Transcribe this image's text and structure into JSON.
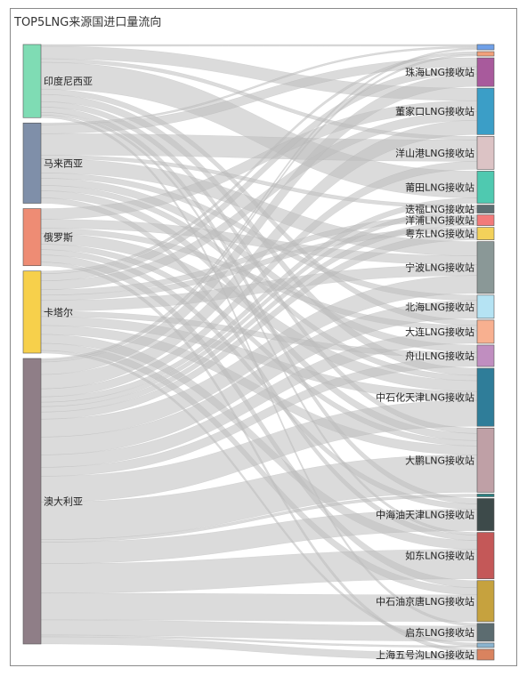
{
  "chart_data": {
    "type": "sankey",
    "title": "TOP5LNG来源国进口量流向",
    "sources": [
      {
        "name": "印度尼西亚",
        "color": "#7fdcb4"
      },
      {
        "name": "马来西亚",
        "color": "#7f8fa9"
      },
      {
        "name": "俄罗斯",
        "color": "#ee8c74"
      },
      {
        "name": "卡塔尔",
        "color": "#f7d04b"
      },
      {
        "name": "澳大利亚",
        "color": "#8f7e87"
      }
    ],
    "targets": [
      {
        "name": "",
        "color": "#6fa0e8",
        "value": 6
      },
      {
        "name": "",
        "color": "#f2a07a",
        "value": 5
      },
      {
        "name": "珠海LNG接收站",
        "color": "#a85a9c",
        "value": 32
      },
      {
        "name": "董家口LNG接收站",
        "color": "#3b9ec7",
        "value": 52
      },
      {
        "name": "洋山港LNG接收站",
        "color": "#dcc3c5",
        "value": 37
      },
      {
        "name": "莆田LNG接收站",
        "color": "#4fc9b0",
        "value": 36
      },
      {
        "name": "迭福LNG接收站",
        "color": "#5d6e72",
        "value": 9
      },
      {
        "name": "洋浦LNG接收站",
        "color": "#f27a7a",
        "value": 12
      },
      {
        "name": "粤东LNG接收站",
        "color": "#f3d15a",
        "value": 14
      },
      {
        "name": "宁波LNG接收站",
        "color": "#8a9897",
        "value": 58
      },
      {
        "name": "北海LNG接收站",
        "color": "#b5e3f3",
        "value": 26
      },
      {
        "name": "大连LNG接收站",
        "color": "#f8b090",
        "value": 26
      },
      {
        "name": "舟山LNG接收站",
        "color": "#c08ec0",
        "value": 24
      },
      {
        "name": "中石化天津LNG接收站",
        "color": "#2f7d99",
        "value": 65
      },
      {
        "name": "大鹏LNG接收站",
        "color": "#bfa0a6",
        "value": 72
      },
      {
        "name": "",
        "color": "#2a7f7f",
        "value": 3
      },
      {
        "name": "中海油天津LNG接收站",
        "color": "#3d4a4a",
        "value": 36
      },
      {
        "name": "如东LNG接收站",
        "color": "#c45858",
        "value": 52
      },
      {
        "name": "中石油京唐LNG接收站",
        "color": "#c6a23e",
        "value": 46
      },
      {
        "name": "启东LNG接收站",
        "color": "#5c6c70",
        "value": 20
      },
      {
        "name": "",
        "color": "#8ab4cf",
        "value": 5
      },
      {
        "name": "上海五号沟LNG接收站",
        "color": "#d9835f",
        "value": 12
      }
    ],
    "links": [
      {
        "source": "印度尼西亚",
        "target": 0,
        "value": 2
      },
      {
        "source": "印度尼西亚",
        "target": 3,
        "value": 14
      },
      {
        "source": "印度尼西亚",
        "target": 4,
        "value": 4
      },
      {
        "source": "印度尼西亚",
        "target": 5,
        "value": 30
      },
      {
        "source": "印度尼西亚",
        "target": 11,
        "value": 6
      },
      {
        "source": "印度尼西亚",
        "target": 13,
        "value": 8
      },
      {
        "source": "印度尼西亚",
        "target": 14,
        "value": 6
      },
      {
        "source": "印度尼西亚",
        "target": 16,
        "value": 6
      },
      {
        "source": "印度尼西亚",
        "target": 17,
        "value": 3
      },
      {
        "source": "印度尼西亚",
        "target": 19,
        "value": 3
      },
      {
        "source": "马来西亚",
        "target": 0,
        "value": 2
      },
      {
        "source": "马来西亚",
        "target": 2,
        "value": 10
      },
      {
        "source": "马来西亚",
        "target": 4,
        "value": 24
      },
      {
        "source": "马来西亚",
        "target": 6,
        "value": 4
      },
      {
        "source": "马来西亚",
        "target": 9,
        "value": 16
      },
      {
        "source": "马来西亚",
        "target": 10,
        "value": 6
      },
      {
        "source": "马来西亚",
        "target": 12,
        "value": 8
      },
      {
        "source": "马来西亚",
        "target": 13,
        "value": 6
      },
      {
        "source": "马来西亚",
        "target": 14,
        "value": 8
      },
      {
        "source": "马来西亚",
        "target": 17,
        "value": 6
      },
      {
        "source": "俄罗斯",
        "target": 3,
        "value": 12
      },
      {
        "source": "俄罗斯",
        "target": 9,
        "value": 10
      },
      {
        "source": "俄罗斯",
        "target": 11,
        "value": 6
      },
      {
        "source": "俄罗斯",
        "target": 13,
        "value": 12
      },
      {
        "source": "俄罗斯",
        "target": 14,
        "value": 6
      },
      {
        "source": "俄罗斯",
        "target": 16,
        "value": 6
      },
      {
        "source": "俄罗斯",
        "target": 18,
        "value": 8
      },
      {
        "source": "俄罗斯",
        "target": 21,
        "value": 4
      },
      {
        "source": "卡塔尔",
        "target": 1,
        "value": 3
      },
      {
        "source": "卡塔尔",
        "target": 2,
        "value": 8
      },
      {
        "source": "卡塔尔",
        "target": 3,
        "value": 10
      },
      {
        "source": "卡塔尔",
        "target": 7,
        "value": 6
      },
      {
        "source": "卡塔尔",
        "target": 8,
        "value": 6
      },
      {
        "source": "卡塔尔",
        "target": 9,
        "value": 12
      },
      {
        "source": "卡塔尔",
        "target": 12,
        "value": 6
      },
      {
        "source": "卡塔尔",
        "target": 13,
        "value": 10
      },
      {
        "source": "卡塔尔",
        "target": 14,
        "value": 10
      },
      {
        "source": "卡塔尔",
        "target": 17,
        "value": 10
      },
      {
        "source": "卡塔尔",
        "target": 18,
        "value": 8
      },
      {
        "source": "卡塔尔",
        "target": 20,
        "value": 3
      },
      {
        "source": "澳大利亚",
        "target": 0,
        "value": 2
      },
      {
        "source": "澳大利亚",
        "target": 1,
        "value": 2
      },
      {
        "source": "澳大利亚",
        "target": 2,
        "value": 14
      },
      {
        "source": "澳大利亚",
        "target": 3,
        "value": 16
      },
      {
        "source": "澳大利亚",
        "target": 4,
        "value": 9
      },
      {
        "source": "澳大利亚",
        "target": 5,
        "value": 6
      },
      {
        "source": "澳大利亚",
        "target": 6,
        "value": 5
      },
      {
        "source": "澳大利亚",
        "target": 7,
        "value": 6
      },
      {
        "source": "澳大利亚",
        "target": 8,
        "value": 8
      },
      {
        "source": "澳大利亚",
        "target": 9,
        "value": 20
      },
      {
        "source": "澳大利亚",
        "target": 10,
        "value": 20
      },
      {
        "source": "澳大利亚",
        "target": 11,
        "value": 14
      },
      {
        "source": "澳大利亚",
        "target": 12,
        "value": 10
      },
      {
        "source": "澳大利亚",
        "target": 13,
        "value": 29
      },
      {
        "source": "澳大利亚",
        "target": 14,
        "value": 42
      },
      {
        "source": "澳大利亚",
        "target": 15,
        "value": 3
      },
      {
        "source": "澳大利亚",
        "target": 16,
        "value": 24
      },
      {
        "source": "澳大利亚",
        "target": 17,
        "value": 33
      },
      {
        "source": "澳大利亚",
        "target": 18,
        "value": 30
      },
      {
        "source": "澳大利亚",
        "target": 19,
        "value": 17
      },
      {
        "source": "澳大利亚",
        "target": 20,
        "value": 2
      },
      {
        "source": "澳大利亚",
        "target": 21,
        "value": 8
      }
    ],
    "link_color": "#bdbdbd"
  }
}
